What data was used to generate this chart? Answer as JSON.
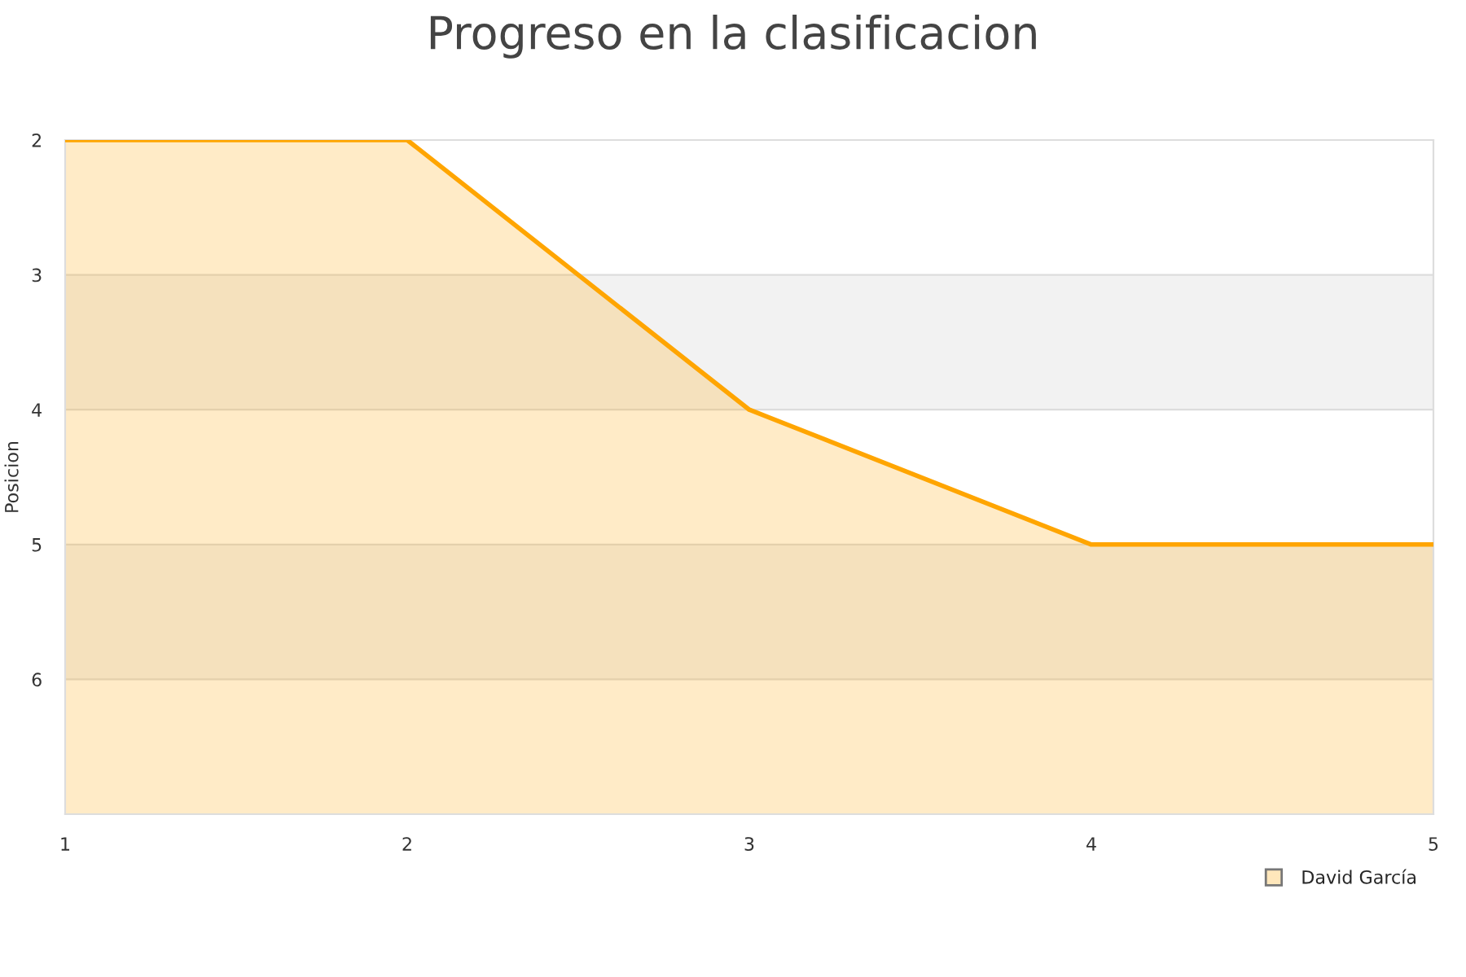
{
  "chart_data": {
    "type": "line",
    "title": "Progreso en la clasificacion",
    "ylabel": "Posicion",
    "x": [
      1,
      2,
      3,
      4,
      5
    ],
    "series": [
      {
        "name": "David García",
        "color": "#ffa500",
        "values": [
          2,
          2,
          4,
          5,
          5
        ],
        "lower": [
          2,
          2,
          4,
          5,
          5
        ],
        "upper": [
          7,
          7,
          7,
          7,
          7
        ]
      }
    ],
    "xlim": [
      1,
      5
    ],
    "xticks": [
      1,
      2,
      3,
      4,
      5
    ],
    "ylim": [
      7,
      2
    ],
    "yticks": [
      2,
      3,
      4,
      5,
      6
    ],
    "bands": [
      {
        "axis": "y",
        "from": 3,
        "to": 4,
        "label": null,
        "color": "#f2f2f2"
      },
      {
        "axis": "y",
        "from": 5,
        "to": 6,
        "label": null,
        "color": "#f2f2f2"
      }
    ],
    "grid": "y",
    "legend": "bottom right",
    "marker": "none",
    "line_style": "solid"
  }
}
